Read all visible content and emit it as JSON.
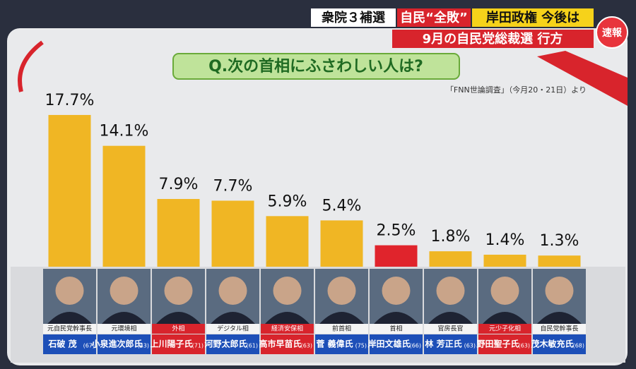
{
  "header": {
    "line1": [
      "衆院３補選",
      "自民“全敗”",
      "岸田政権 今後は"
    ],
    "line2": "9月の自民党総裁選 行方",
    "badge": "速報"
  },
  "chart_data": {
    "type": "bar",
    "title": "Q.次の首相にふさわしい人は?",
    "source": "「FNN世論調査」（今月20・21日）より",
    "categories": [
      "石破 茂",
      "小泉進次郎氏",
      "上川陽子氏",
      "河野太郎氏",
      "高市早苗氏",
      "菅 義偉氏",
      "岸田文雄氏",
      "林 芳正氏",
      "野田聖子氏",
      "茂木敏充氏"
    ],
    "ages": [
      "(67)",
      "(43)",
      "(71)",
      "(61)",
      "(63)",
      "(75)",
      "(66)",
      "(63)",
      "(63)",
      "(68)"
    ],
    "roles": [
      "元自民党幹事長",
      "元環境相",
      "外相",
      "デジタル相",
      "経済安保相",
      "前首相",
      "首相",
      "官房長官",
      "元少子化相",
      "自民党幹事長"
    ],
    "values": [
      17.7,
      14.1,
      7.9,
      7.7,
      5.9,
      5.4,
      2.5,
      1.8,
      1.4,
      1.3
    ],
    "value_labels": [
      "17.7%",
      "14.1%",
      "7.9%",
      "7.7%",
      "5.9%",
      "5.4%",
      "2.5%",
      "1.8%",
      "1.4%",
      "1.3%"
    ],
    "colors": [
      "#f0b624",
      "#f0b624",
      "#f0b624",
      "#f0b624",
      "#f0b624",
      "#f0b624",
      "#e0242c",
      "#f0b624",
      "#f0b624",
      "#f0b624"
    ],
    "name_colors": [
      "#1d4fb8",
      "#1d4fb8",
      "#d8242c",
      "#1d4fb8",
      "#d8242c",
      "#1d4fb8",
      "#1d4fb8",
      "#1d4fb8",
      "#d8242c",
      "#1d4fb8"
    ]
  }
}
